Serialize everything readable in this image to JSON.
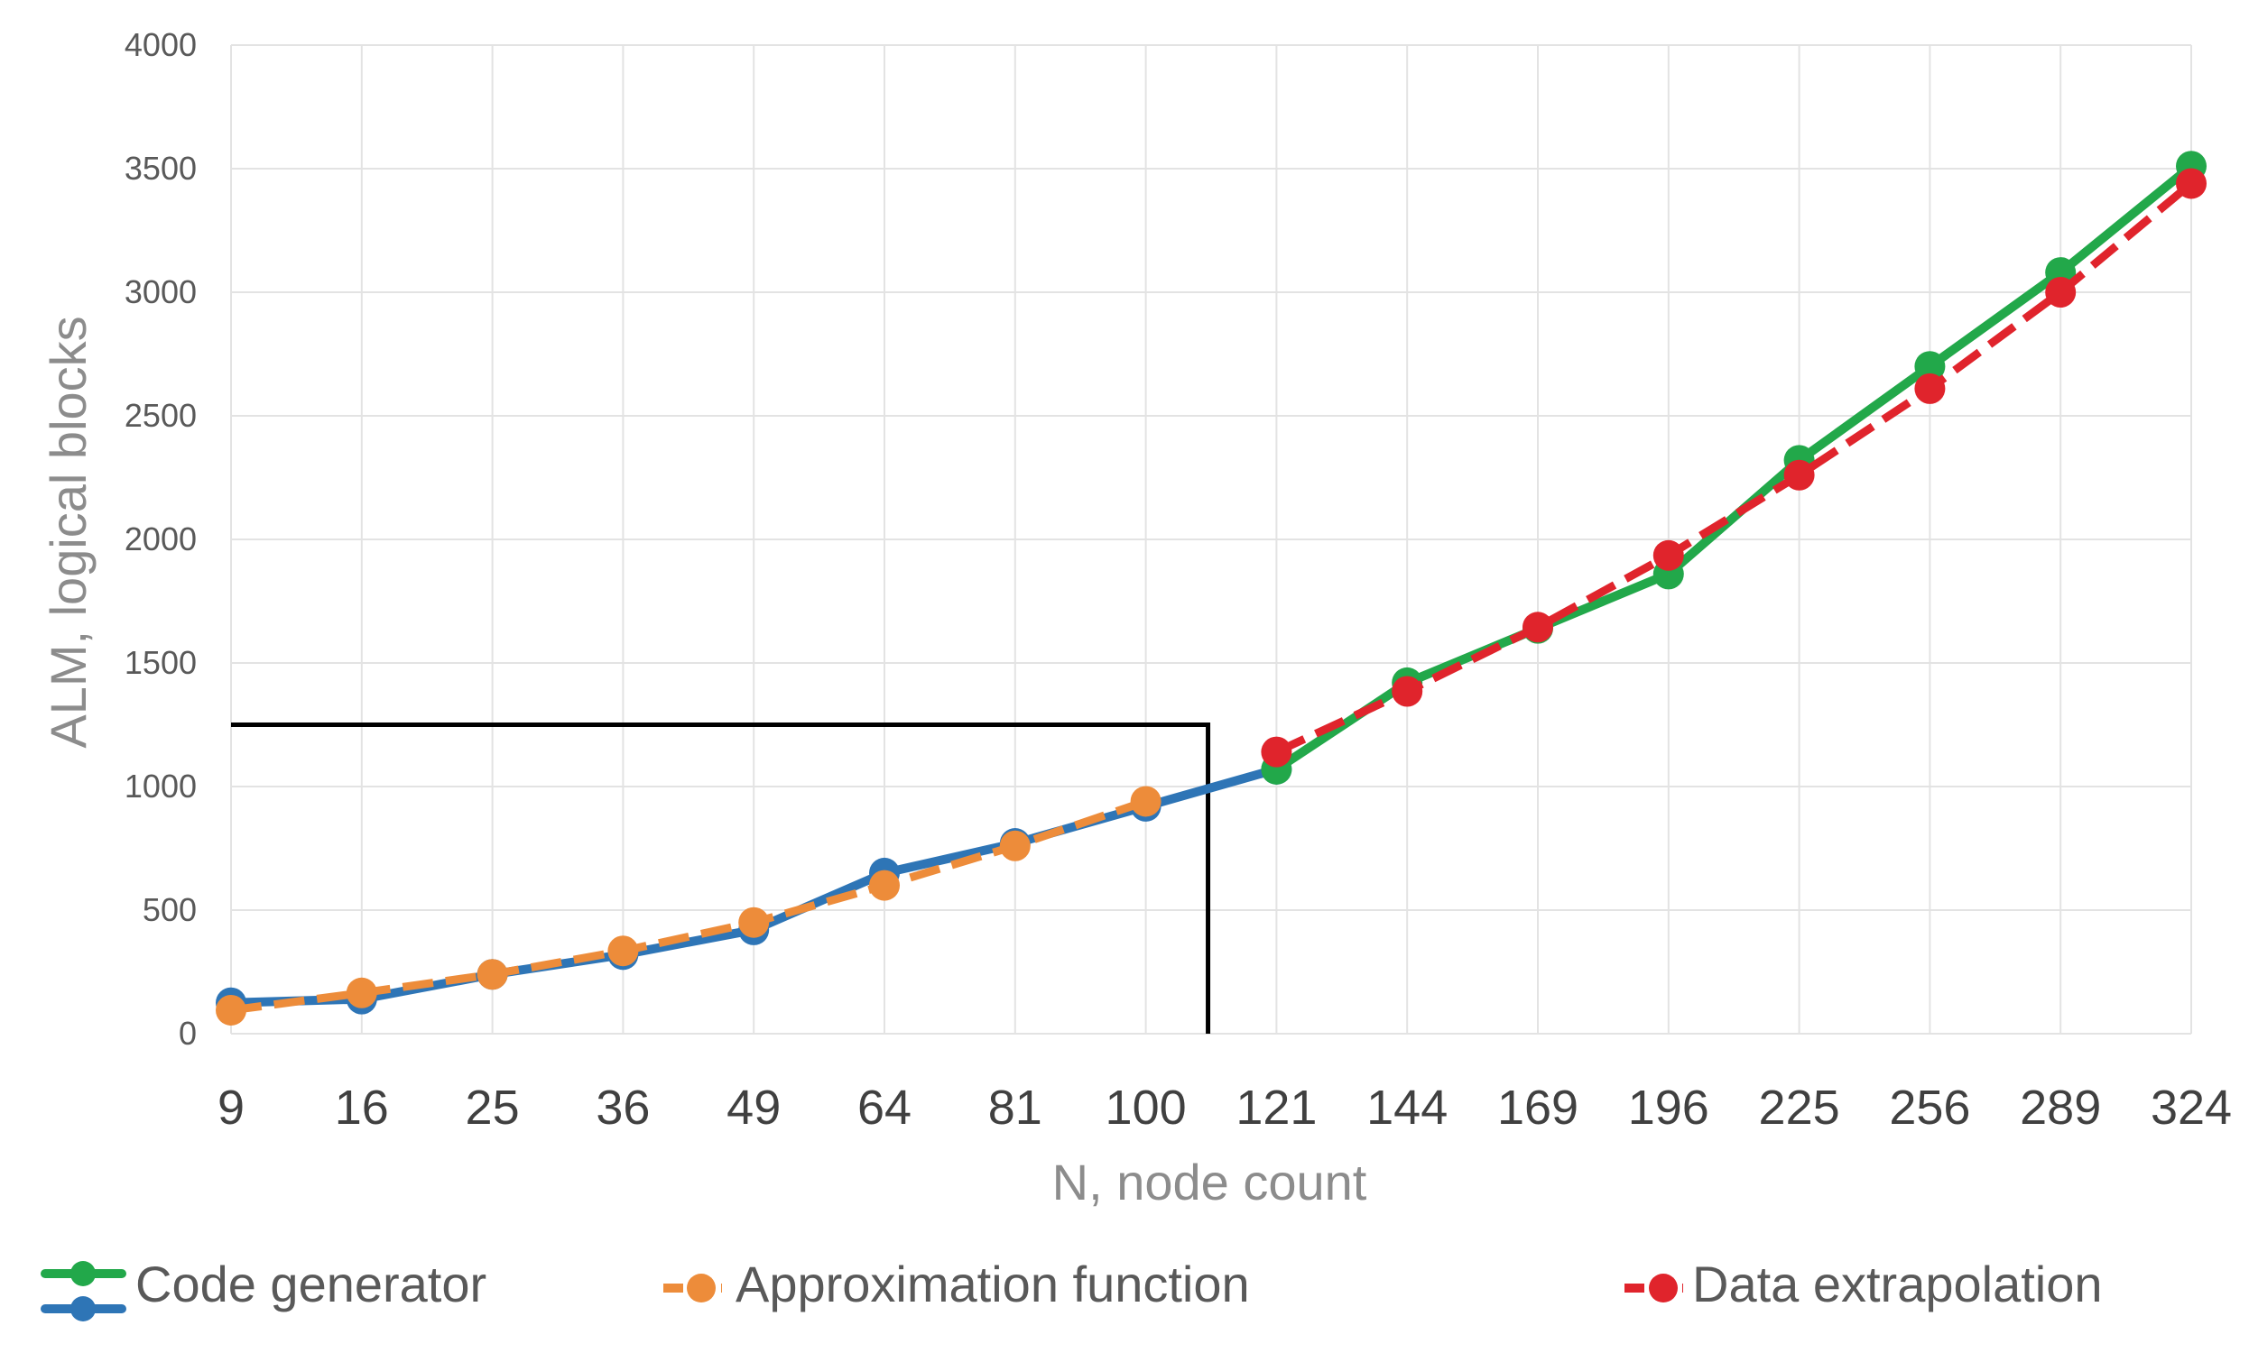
{
  "chart_data": {
    "type": "line",
    "title": "",
    "xlabel": "N, node count",
    "ylabel": "ALM, logical blocks",
    "categories": [
      "9",
      "16",
      "25",
      "36",
      "49",
      "64",
      "81",
      "100",
      "121",
      "144",
      "169",
      "196",
      "225",
      "256",
      "289",
      "324"
    ],
    "ylim": [
      0,
      4000
    ],
    "yticks": [
      0,
      500,
      1000,
      1500,
      2000,
      2500,
      3000,
      3500,
      4000
    ],
    "grid": true,
    "legend_position": "bottom",
    "series": [
      {
        "name": "Code generator",
        "color": "#2e75b6",
        "style": "solid",
        "values": [
          125,
          140,
          240,
          320,
          420,
          650,
          770,
          920,
          1070,
          null,
          null,
          null,
          null,
          null,
          null,
          null
        ]
      },
      {
        "name": "Code generator",
        "color": "#22a84a",
        "style": "solid",
        "values": [
          null,
          null,
          null,
          null,
          null,
          null,
          null,
          null,
          1070,
          1420,
          1640,
          1860,
          2320,
          2700,
          3080,
          3510
        ]
      },
      {
        "name": "Approximation function",
        "color": "#ed8c3a",
        "style": "dashed",
        "values": [
          95,
          165,
          240,
          335,
          450,
          600,
          760,
          940,
          null,
          null,
          null,
          null,
          null,
          null,
          null,
          null
        ]
      },
      {
        "name": "Data extrapolation",
        "color": "#e0242c",
        "style": "dashed",
        "values": [
          null,
          null,
          null,
          null,
          null,
          null,
          null,
          null,
          1140,
          1385,
          1645,
          1935,
          2260,
          2610,
          3000,
          3440
        ]
      }
    ],
    "annotation": {
      "type": "boundary-box",
      "x_data": 110,
      "y_data": 1250,
      "color": "#000000"
    },
    "legend": {
      "code_generator": "Code generator",
      "approximation": "Approximation function",
      "extrapolation": "Data extrapolation"
    }
  }
}
